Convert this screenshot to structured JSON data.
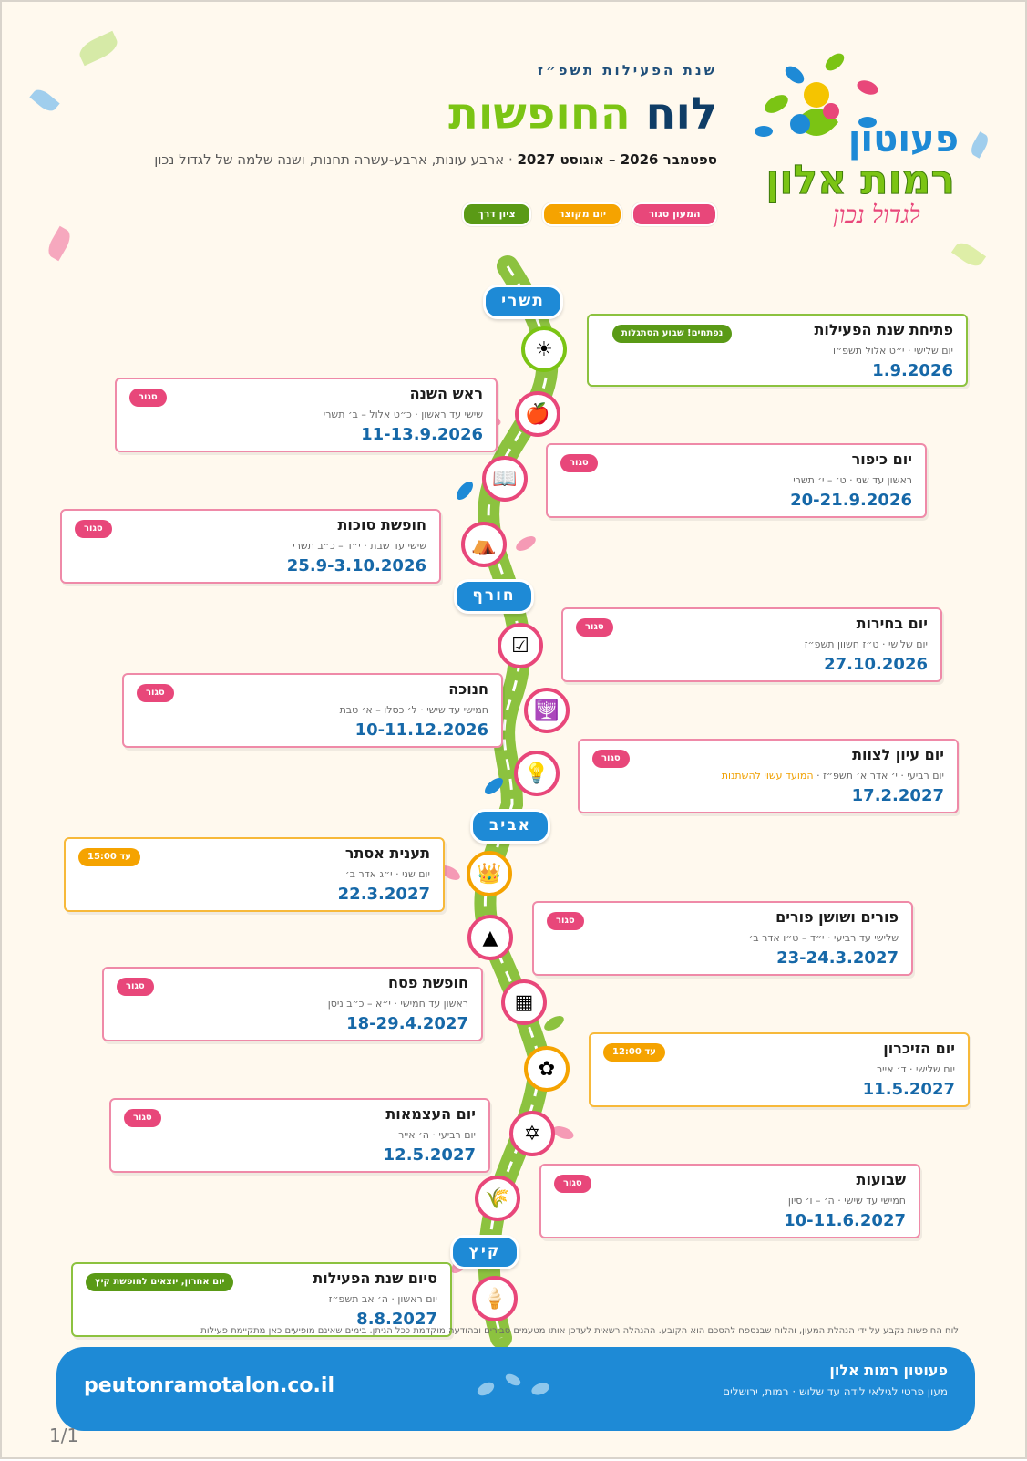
{
  "header": {
    "year_label": "שנת הפעילות תשפ״ז",
    "title_part1": "לוח",
    "title_part2": "החופשות",
    "subtitle_bold": "ספטמבר 2026 – אוגוסט 2027",
    "subtitle_rest": " · ארבע עונות, ארבע-עשרה תחנות, ושנה שלמה של לגדול נכון"
  },
  "logo": {
    "line1": "פעוטון",
    "line2": "רמות אלון",
    "tagline": "לגדול נכון"
  },
  "legend": [
    {
      "label": "המעון סגור",
      "color": "#e8477a"
    },
    {
      "label": "יום מקוצר",
      "color": "#f5a300"
    },
    {
      "label": "ציון דרך",
      "color": "#5a9a16"
    }
  ],
  "seasons": [
    "תשרי",
    "חורף",
    "אביב",
    "קיץ"
  ],
  "events": [
    {
      "title": "פתיחת שנת הפעילות",
      "sub": "יום שלישי · י״ט אלול תשפ״ו",
      "date": "1.9.2026",
      "badge": "נפתחים! שבוע הסתגלות",
      "kind": "green",
      "icon": "sun-icon",
      "glyph": "☀"
    },
    {
      "title": "ראש השנה",
      "sub": "שישי עד ראשון · כ״ט אלול – ב׳ תשרי",
      "date": "11-13.9.2026",
      "badge": "סגור",
      "kind": "pink",
      "icon": "apple-icon",
      "glyph": "🍎"
    },
    {
      "title": "יום כיפור",
      "sub": "ראשון עד שני · ט׳ – י׳ תשרי",
      "date": "20-21.9.2026",
      "badge": "סגור",
      "kind": "pink",
      "icon": "book-icon",
      "glyph": "📖"
    },
    {
      "title": "חופשת סוכות",
      "sub": "שישי עד שבת · י״ד – כ״ב תשרי",
      "date": "25.9-3.10.2026",
      "badge": "סגור",
      "kind": "pink",
      "icon": "sukkah-icon",
      "glyph": "⛺"
    },
    {
      "title": "יום בחירות",
      "sub": "יום שלישי · ט״ז חשוון תשפ״ז",
      "date": "27.10.2026",
      "badge": "סגור",
      "kind": "pink",
      "icon": "ballot-box-icon",
      "glyph": "☑"
    },
    {
      "title": "חנוכה",
      "sub": "חמישי עד שישי · ל׳ כסלו – א׳ טבת",
      "date": "10-11.12.2026",
      "badge": "סגור",
      "kind": "pink",
      "icon": "menorah-icon",
      "glyph": "🕎"
    },
    {
      "title": "יום עיון לצוות",
      "sub": "יום רביעי · י׳ אדר א׳ תשפ״ז · ",
      "note": "המועד עשוי להשתנות",
      "date": "17.2.2027",
      "badge": "סגור",
      "kind": "pink",
      "icon": "lightbulb-icon",
      "glyph": "💡"
    },
    {
      "title": "תענית אסתר",
      "sub": "יום שני · י״ג אדר ב׳",
      "date": "22.3.2027",
      "badge": "עד 15:00",
      "kind": "orange",
      "icon": "crown-icon",
      "glyph": "👑"
    },
    {
      "title": "פורים ושושן פורים",
      "sub": "שלישי עד רביעי · י״ד – ט״ו אדר ב׳",
      "date": "23-24.3.2027",
      "badge": "סגור",
      "kind": "pink",
      "icon": "hamantash-icon",
      "glyph": "▲"
    },
    {
      "title": "חופשת פסח",
      "sub": "ראשון עד חמישי · י״א – כ״ב ניסן",
      "date": "18-29.4.2027",
      "badge": "סגור",
      "kind": "pink",
      "icon": "matzah-icon",
      "glyph": "▦"
    },
    {
      "title": "יום הזיכרון",
      "sub": "יום שלישי · ד׳ אייר",
      "date": "11.5.2027",
      "badge": "עד 12:00",
      "kind": "orange",
      "icon": "flower-icon",
      "glyph": "✿"
    },
    {
      "title": "יום העצמאות",
      "sub": "יום רביעי · ה׳ אייר",
      "date": "12.5.2027",
      "badge": "סגור",
      "kind": "pink",
      "icon": "israel-flag-icon",
      "glyph": "✡"
    },
    {
      "title": "שבועות",
      "sub": "חמישי עד שישי · ה׳ – ו׳ סיון",
      "date": "10-11.6.2027",
      "badge": "סגור",
      "kind": "pink",
      "icon": "wheat-icon",
      "glyph": "🌾"
    },
    {
      "title": "סיום שנת הפעילות",
      "sub": "יום ראשון · ה׳ אב תשפ״ז",
      "date": "8.8.2027",
      "badge": "יום אחרון, יוצאים לחופשת קיץ",
      "kind": "green",
      "icon": "ice-cream-icon",
      "glyph": "🍦"
    }
  ],
  "disclaimer": "לוח החופשות נקבע על ידי הנהלת המעון, והלוח שבנספח להסכם הוא הקובע. ההנהלה רשאית לעדכן אותו מטעמים סבירים ובהודעה מוקדמת ככל הניתן. בימים שאינם מופיעים כאן מתקיימת פעילות",
  "footer": {
    "name": "פעוטון רמות אלון",
    "sub": "מעון פרטי לגילאי לידה עד שלוש · רמות, ירושלים",
    "url": "peutonramotalon.co.il"
  },
  "pager": "1/1",
  "colors": {
    "closed": "#e8477a",
    "short_day": "#f5a300",
    "milestone": "#5a9a16",
    "accent_blue": "#1e8ad6",
    "title_navy": "#0f3d66",
    "title_green": "#7bc414"
  }
}
